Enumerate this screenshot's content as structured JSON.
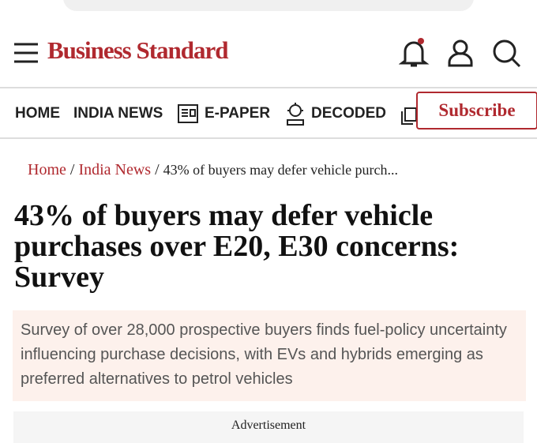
{
  "header": {
    "brand": "Business Standard"
  },
  "nav": {
    "items": [
      "HOME",
      "INDIA NEWS",
      "E-PAPER",
      "DECODED"
    ],
    "subscribe": "Subscribe"
  },
  "breadcrumb": {
    "home": "Home",
    "section": "India News",
    "current": "43% of buyers may defer vehicle purch..."
  },
  "article": {
    "title": "43% of buyers may defer vehicle purchases over E20, E30 concerns: Survey",
    "summary": "Survey of over 28,000 prospective buyers finds fuel-policy uncertainty influencing purchase decisions, with EVs and hybrids emerging as preferred alternatives to petrol vehicles"
  },
  "ad": {
    "label": "Advertisement"
  }
}
